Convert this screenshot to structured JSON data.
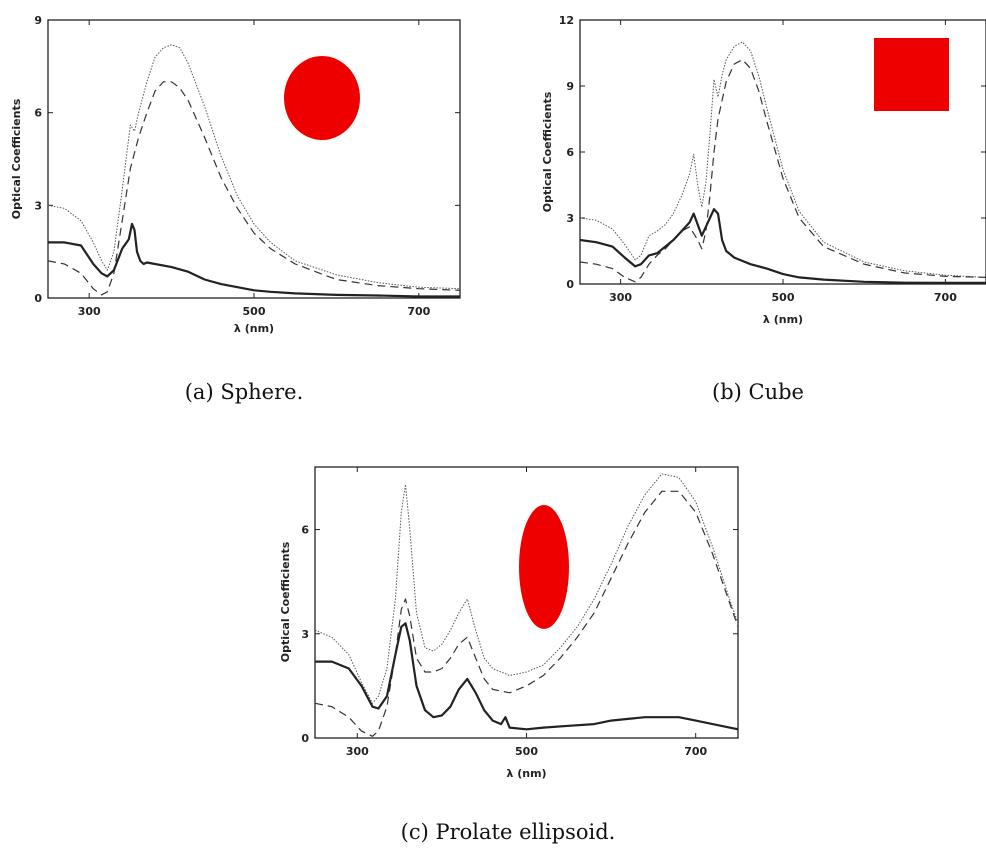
{
  "figure": {
    "captions": [
      "(a) Sphere.",
      "(b) Cube",
      "(c) Prolate ellipsoid."
    ]
  },
  "colors": {
    "shape": "#ee0000",
    "axis": "#222222",
    "line": "#333333"
  },
  "chart_data": [
    {
      "type": "line",
      "title": "",
      "caption": "(a) Sphere.",
      "xlabel": "λ (nm)",
      "ylabel": "Optical Coefficients",
      "xlim": [
        250,
        750
      ],
      "ylim": [
        0,
        9
      ],
      "xticks": [
        300,
        500,
        700
      ],
      "yticks": [
        0,
        3,
        6,
        9
      ],
      "shape_icon": "circle",
      "series": [
        {
          "style": "dotted",
          "x": [
            250,
            270,
            290,
            305,
            315,
            322,
            330,
            340,
            350,
            355,
            360,
            365,
            370,
            380,
            390,
            400,
            410,
            420,
            440,
            460,
            480,
            500,
            520,
            550,
            600,
            650,
            700,
            750
          ],
          "y": [
            3.0,
            2.9,
            2.5,
            1.8,
            1.2,
            0.9,
            1.5,
            3.5,
            5.6,
            5.4,
            6.0,
            6.5,
            7.0,
            7.8,
            8.1,
            8.2,
            8.1,
            7.6,
            6.2,
            4.6,
            3.3,
            2.4,
            1.8,
            1.2,
            0.75,
            0.5,
            0.35,
            0.3
          ]
        },
        {
          "style": "dashed",
          "x": [
            250,
            270,
            290,
            305,
            315,
            322,
            330,
            340,
            350,
            360,
            370,
            380,
            390,
            400,
            410,
            420,
            440,
            460,
            480,
            500,
            520,
            550,
            600,
            650,
            700,
            750
          ],
          "y": [
            1.2,
            1.1,
            0.8,
            0.3,
            0.1,
            0.2,
            0.8,
            2.5,
            4.2,
            5.2,
            6.0,
            6.7,
            7.0,
            7.0,
            6.8,
            6.4,
            5.2,
            3.9,
            2.9,
            2.1,
            1.6,
            1.1,
            0.6,
            0.4,
            0.3,
            0.25
          ]
        },
        {
          "style": "solid",
          "x": [
            250,
            270,
            290,
            305,
            315,
            322,
            330,
            340,
            348,
            352,
            355,
            358,
            362,
            366,
            370,
            380,
            400,
            420,
            440,
            460,
            480,
            500,
            520,
            550,
            600,
            650,
            700,
            750
          ],
          "y": [
            1.8,
            1.8,
            1.7,
            1.1,
            0.8,
            0.7,
            0.9,
            1.6,
            1.9,
            2.4,
            2.2,
            1.5,
            1.2,
            1.1,
            1.15,
            1.1,
            1.0,
            0.85,
            0.6,
            0.45,
            0.35,
            0.25,
            0.2,
            0.15,
            0.1,
            0.08,
            0.05,
            0.05
          ]
        }
      ]
    },
    {
      "type": "line",
      "title": "",
      "caption": "(b) Cube",
      "xlabel": "λ (nm)",
      "ylabel": "Optical Coefficients",
      "xlim": [
        250,
        750
      ],
      "ylim": [
        0,
        12
      ],
      "xticks": [
        300,
        500,
        700
      ],
      "yticks": [
        0,
        3,
        6,
        9,
        12
      ],
      "shape_icon": "square",
      "series": [
        {
          "style": "dotted",
          "x": [
            250,
            270,
            290,
            305,
            318,
            325,
            335,
            345,
            355,
            365,
            375,
            385,
            390,
            395,
            400,
            405,
            410,
            415,
            420,
            425,
            430,
            440,
            450,
            460,
            470,
            480,
            500,
            520,
            550,
            600,
            650,
            700,
            750
          ],
          "y": [
            3.0,
            2.9,
            2.5,
            1.8,
            1.1,
            1.3,
            2.2,
            2.4,
            2.7,
            3.2,
            4.0,
            5.0,
            5.9,
            4.5,
            3.5,
            4.6,
            6.8,
            9.3,
            8.5,
            9.5,
            10.2,
            10.8,
            11.0,
            10.6,
            9.5,
            8.0,
            5.2,
            3.3,
            1.9,
            1.0,
            0.6,
            0.4,
            0.3
          ]
        },
        {
          "style": "dashed",
          "x": [
            250,
            270,
            290,
            305,
            318,
            325,
            335,
            345,
            355,
            365,
            375,
            385,
            395,
            400,
            405,
            410,
            415,
            420,
            430,
            440,
            450,
            460,
            470,
            480,
            500,
            520,
            550,
            600,
            650,
            700,
            750
          ],
          "y": [
            1.0,
            0.9,
            0.7,
            0.3,
            0.1,
            0.3,
            0.9,
            1.3,
            1.6,
            2.0,
            2.4,
            2.6,
            2.0,
            1.6,
            2.4,
            4.0,
            6.0,
            7.5,
            9.2,
            10.0,
            10.2,
            9.8,
            8.8,
            7.4,
            4.8,
            3.0,
            1.7,
            0.9,
            0.5,
            0.35,
            0.3
          ]
        },
        {
          "style": "solid",
          "x": [
            250,
            270,
            290,
            305,
            318,
            325,
            335,
            345,
            355,
            365,
            375,
            385,
            390,
            395,
            400,
            405,
            410,
            415,
            420,
            425,
            430,
            440,
            460,
            480,
            500,
            520,
            550,
            600,
            650,
            700,
            750
          ],
          "y": [
            2.0,
            1.9,
            1.7,
            1.2,
            0.8,
            0.9,
            1.3,
            1.4,
            1.7,
            2.0,
            2.4,
            2.8,
            3.2,
            2.7,
            2.2,
            2.6,
            3.0,
            3.4,
            3.2,
            2.0,
            1.5,
            1.2,
            0.9,
            0.7,
            0.45,
            0.3,
            0.2,
            0.1,
            0.06,
            0.05,
            0.05
          ]
        }
      ]
    },
    {
      "type": "line",
      "title": "",
      "caption": "(c) Prolate ellipsoid.",
      "xlabel": "λ (nm)",
      "ylabel": "Optical Coefficients",
      "xlim": [
        250,
        750
      ],
      "ylim": [
        0,
        7.8
      ],
      "xticks": [
        300,
        500,
        700
      ],
      "yticks": [
        0,
        3,
        6
      ],
      "shape_icon": "ellipse",
      "series": [
        {
          "style": "dotted",
          "x": [
            250,
            270,
            290,
            305,
            318,
            325,
            335,
            345,
            352,
            357,
            362,
            370,
            380,
            390,
            400,
            410,
            420,
            430,
            440,
            450,
            460,
            480,
            500,
            520,
            540,
            560,
            580,
            600,
            620,
            640,
            660,
            680,
            700,
            720,
            740,
            750
          ],
          "y": [
            3.1,
            2.9,
            2.4,
            1.6,
            1.0,
            1.2,
            2.0,
            4.0,
            6.5,
            7.3,
            6.0,
            3.6,
            2.6,
            2.5,
            2.7,
            3.1,
            3.6,
            4.0,
            3.1,
            2.3,
            2.0,
            1.8,
            1.9,
            2.1,
            2.6,
            3.2,
            4.0,
            5.0,
            6.1,
            7.0,
            7.6,
            7.5,
            6.8,
            5.5,
            4.0,
            3.3
          ]
        },
        {
          "style": "dashed",
          "x": [
            250,
            270,
            290,
            305,
            318,
            325,
            335,
            345,
            352,
            357,
            362,
            370,
            380,
            390,
            400,
            410,
            420,
            430,
            440,
            450,
            460,
            480,
            500,
            520,
            540,
            560,
            580,
            600,
            620,
            640,
            660,
            680,
            700,
            720,
            740,
            750
          ],
          "y": [
            1.0,
            0.9,
            0.6,
            0.2,
            0.05,
            0.2,
            0.9,
            2.4,
            3.7,
            4.0,
            3.5,
            2.3,
            1.9,
            1.9,
            2.0,
            2.3,
            2.7,
            2.9,
            2.3,
            1.7,
            1.4,
            1.3,
            1.5,
            1.8,
            2.3,
            2.9,
            3.6,
            4.6,
            5.6,
            6.5,
            7.1,
            7.1,
            6.5,
            5.3,
            3.9,
            3.2
          ]
        },
        {
          "style": "solid",
          "x": [
            250,
            270,
            290,
            305,
            318,
            325,
            335,
            345,
            352,
            357,
            362,
            370,
            380,
            390,
            400,
            410,
            420,
            430,
            440,
            450,
            460,
            470,
            475,
            480,
            500,
            520,
            550,
            580,
            600,
            620,
            640,
            660,
            680,
            700,
            720,
            740,
            750
          ],
          "y": [
            2.2,
            2.2,
            2.0,
            1.5,
            0.9,
            0.85,
            1.2,
            2.4,
            3.2,
            3.3,
            2.8,
            1.5,
            0.8,
            0.6,
            0.65,
            0.9,
            1.4,
            1.7,
            1.3,
            0.8,
            0.5,
            0.4,
            0.6,
            0.3,
            0.25,
            0.3,
            0.35,
            0.4,
            0.5,
            0.55,
            0.6,
            0.6,
            0.6,
            0.5,
            0.4,
            0.3,
            0.25
          ]
        }
      ]
    }
  ]
}
